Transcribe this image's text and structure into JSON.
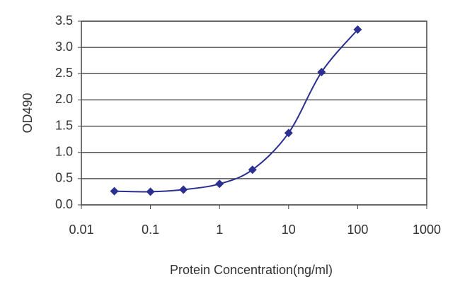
{
  "chart_data": {
    "type": "line",
    "x_label": "Protein Concentration(ng/ml)",
    "y_label": "OD490",
    "x": [
      0.03,
      0.1,
      0.3,
      1,
      3,
      10,
      30,
      100
    ],
    "series": [
      {
        "color": "#2b2f8f",
        "values": [
          0.26,
          0.25,
          0.29,
          0.4,
          0.67,
          1.37,
          2.53,
          3.34
        ]
      }
    ],
    "xlim": [
      0.01,
      1000
    ],
    "xticks": [
      0.01,
      0.1,
      1,
      10,
      100,
      1000
    ],
    "xscale": "log",
    "ylim": [
      0,
      3.5
    ],
    "yticks": [
      {
        "value": 0,
        "label": "0.0"
      },
      0.5,
      {
        "value": 1,
        "label": "1.0"
      },
      1.5,
      {
        "value": 2,
        "label": "2.0"
      },
      2.5,
      {
        "value": 3,
        "label": "3.0"
      },
      3.5
    ],
    "grid": true
  }
}
